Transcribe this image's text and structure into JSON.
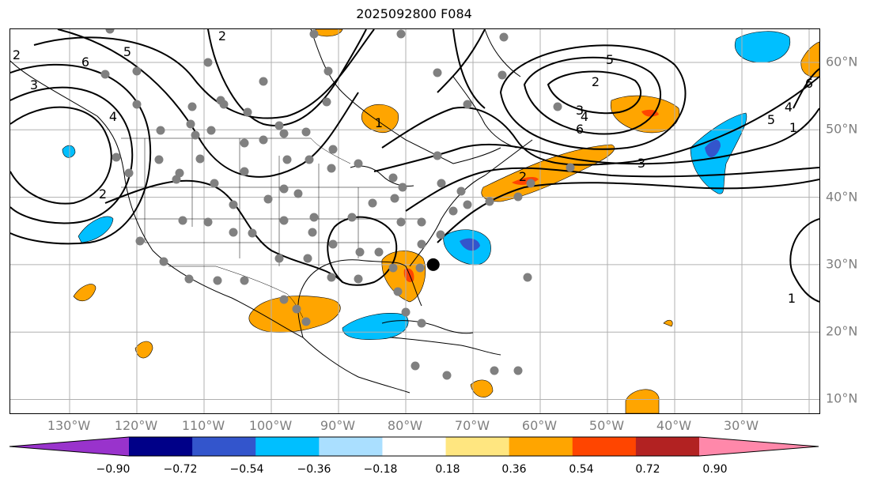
{
  "title": "2025092800 F084",
  "lon_labels": [
    "130°W",
    "120°W",
    "110°W",
    "100°W",
    "90°W",
    "80°W",
    "70°W",
    "60°W",
    "50°W",
    "40°W",
    "30°W"
  ],
  "lat_labels": [
    "60°N",
    "50°N",
    "40°N",
    "30°N",
    "20°N",
    "10°N"
  ],
  "colorbar": {
    "ticks": [
      "−0.90",
      "−0.72",
      "−0.54",
      "−0.36",
      "−0.18",
      "0.18",
      "0.36",
      "0.54",
      "0.72",
      "0.90"
    ],
    "colors": [
      "#9933cc",
      "#000088",
      "#3355cc",
      "#00bfff",
      "#aadfff",
      "#ffffff",
      "#ffe680",
      "#ffa500",
      "#ff4500",
      "#b22222",
      "#ff88aa"
    ]
  },
  "contour_labels": [
    "2",
    "5",
    "6",
    "4",
    "2",
    "1",
    "2",
    "3",
    "4",
    "5",
    "6",
    "2",
    "3",
    "1",
    "2",
    "4",
    "5",
    "6",
    "3",
    "1"
  ],
  "center_marker": {
    "lon": -74.5,
    "lat": 30
  }
}
